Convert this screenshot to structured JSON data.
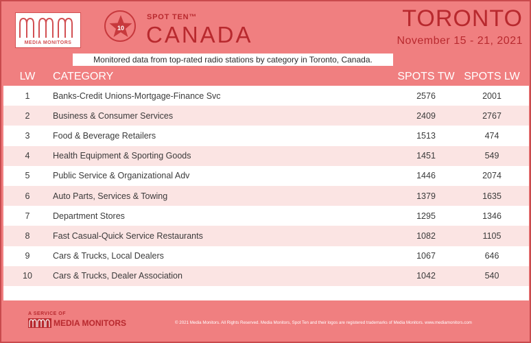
{
  "brand": {
    "logo_text": "MEDIA MONITORS",
    "badge_number": "10",
    "spot_ten_label": "SPOT TEN™",
    "region": "CANADA"
  },
  "header": {
    "city": "TORONTO",
    "date_range": "November 15 - 21, 2021",
    "subtitle": "Monitored data from top-rated radio stations by category in Toronto, Canada."
  },
  "table": {
    "columns": [
      "LW",
      "CATEGORY",
      "SPOTS TW",
      "SPOTS LW"
    ],
    "rows": [
      {
        "lw": "1",
        "category": "Banks-Credit Unions-Mortgage-Finance Svc",
        "spots_tw": "2576",
        "spots_lw": "2001"
      },
      {
        "lw": "2",
        "category": "Business & Consumer Services",
        "spots_tw": "2409",
        "spots_lw": "2767"
      },
      {
        "lw": "3",
        "category": "Food & Beverage Retailers",
        "spots_tw": "1513",
        "spots_lw": "474"
      },
      {
        "lw": "4",
        "category": "Health Equipment & Sporting Goods",
        "spots_tw": "1451",
        "spots_lw": "549"
      },
      {
        "lw": "5",
        "category": "Public Service & Organizational Adv",
        "spots_tw": "1446",
        "spots_lw": "2074"
      },
      {
        "lw": "6",
        "category": "Auto Parts, Services & Towing",
        "spots_tw": "1379",
        "spots_lw": "1635"
      },
      {
        "lw": "7",
        "category": "Department Stores",
        "spots_tw": "1295",
        "spots_lw": "1346"
      },
      {
        "lw": "8",
        "category": "Fast Casual-Quick Service Restaurants",
        "spots_tw": "1082",
        "spots_lw": "1105"
      },
      {
        "lw": "9",
        "category": "Cars & Trucks, Local Dealers",
        "spots_tw": "1067",
        "spots_lw": "646"
      },
      {
        "lw": "10",
        "category": "Cars & Trucks, Dealer Association",
        "spots_tw": "1042",
        "spots_lw": "540"
      }
    ]
  },
  "footer": {
    "service_label": "A SERVICE OF",
    "service_brand": "MEDIA MONITORS",
    "copyright": "© 2021 Media Monitors. All Rights Reserved. Media Monitors, Spot Ten and their logos are registered trademarks of Media Monitors. www.mediamonitors.com"
  },
  "colors": {
    "background": "#f07f80",
    "accent": "#b8292e",
    "row_alt": "#fbe4e3"
  }
}
